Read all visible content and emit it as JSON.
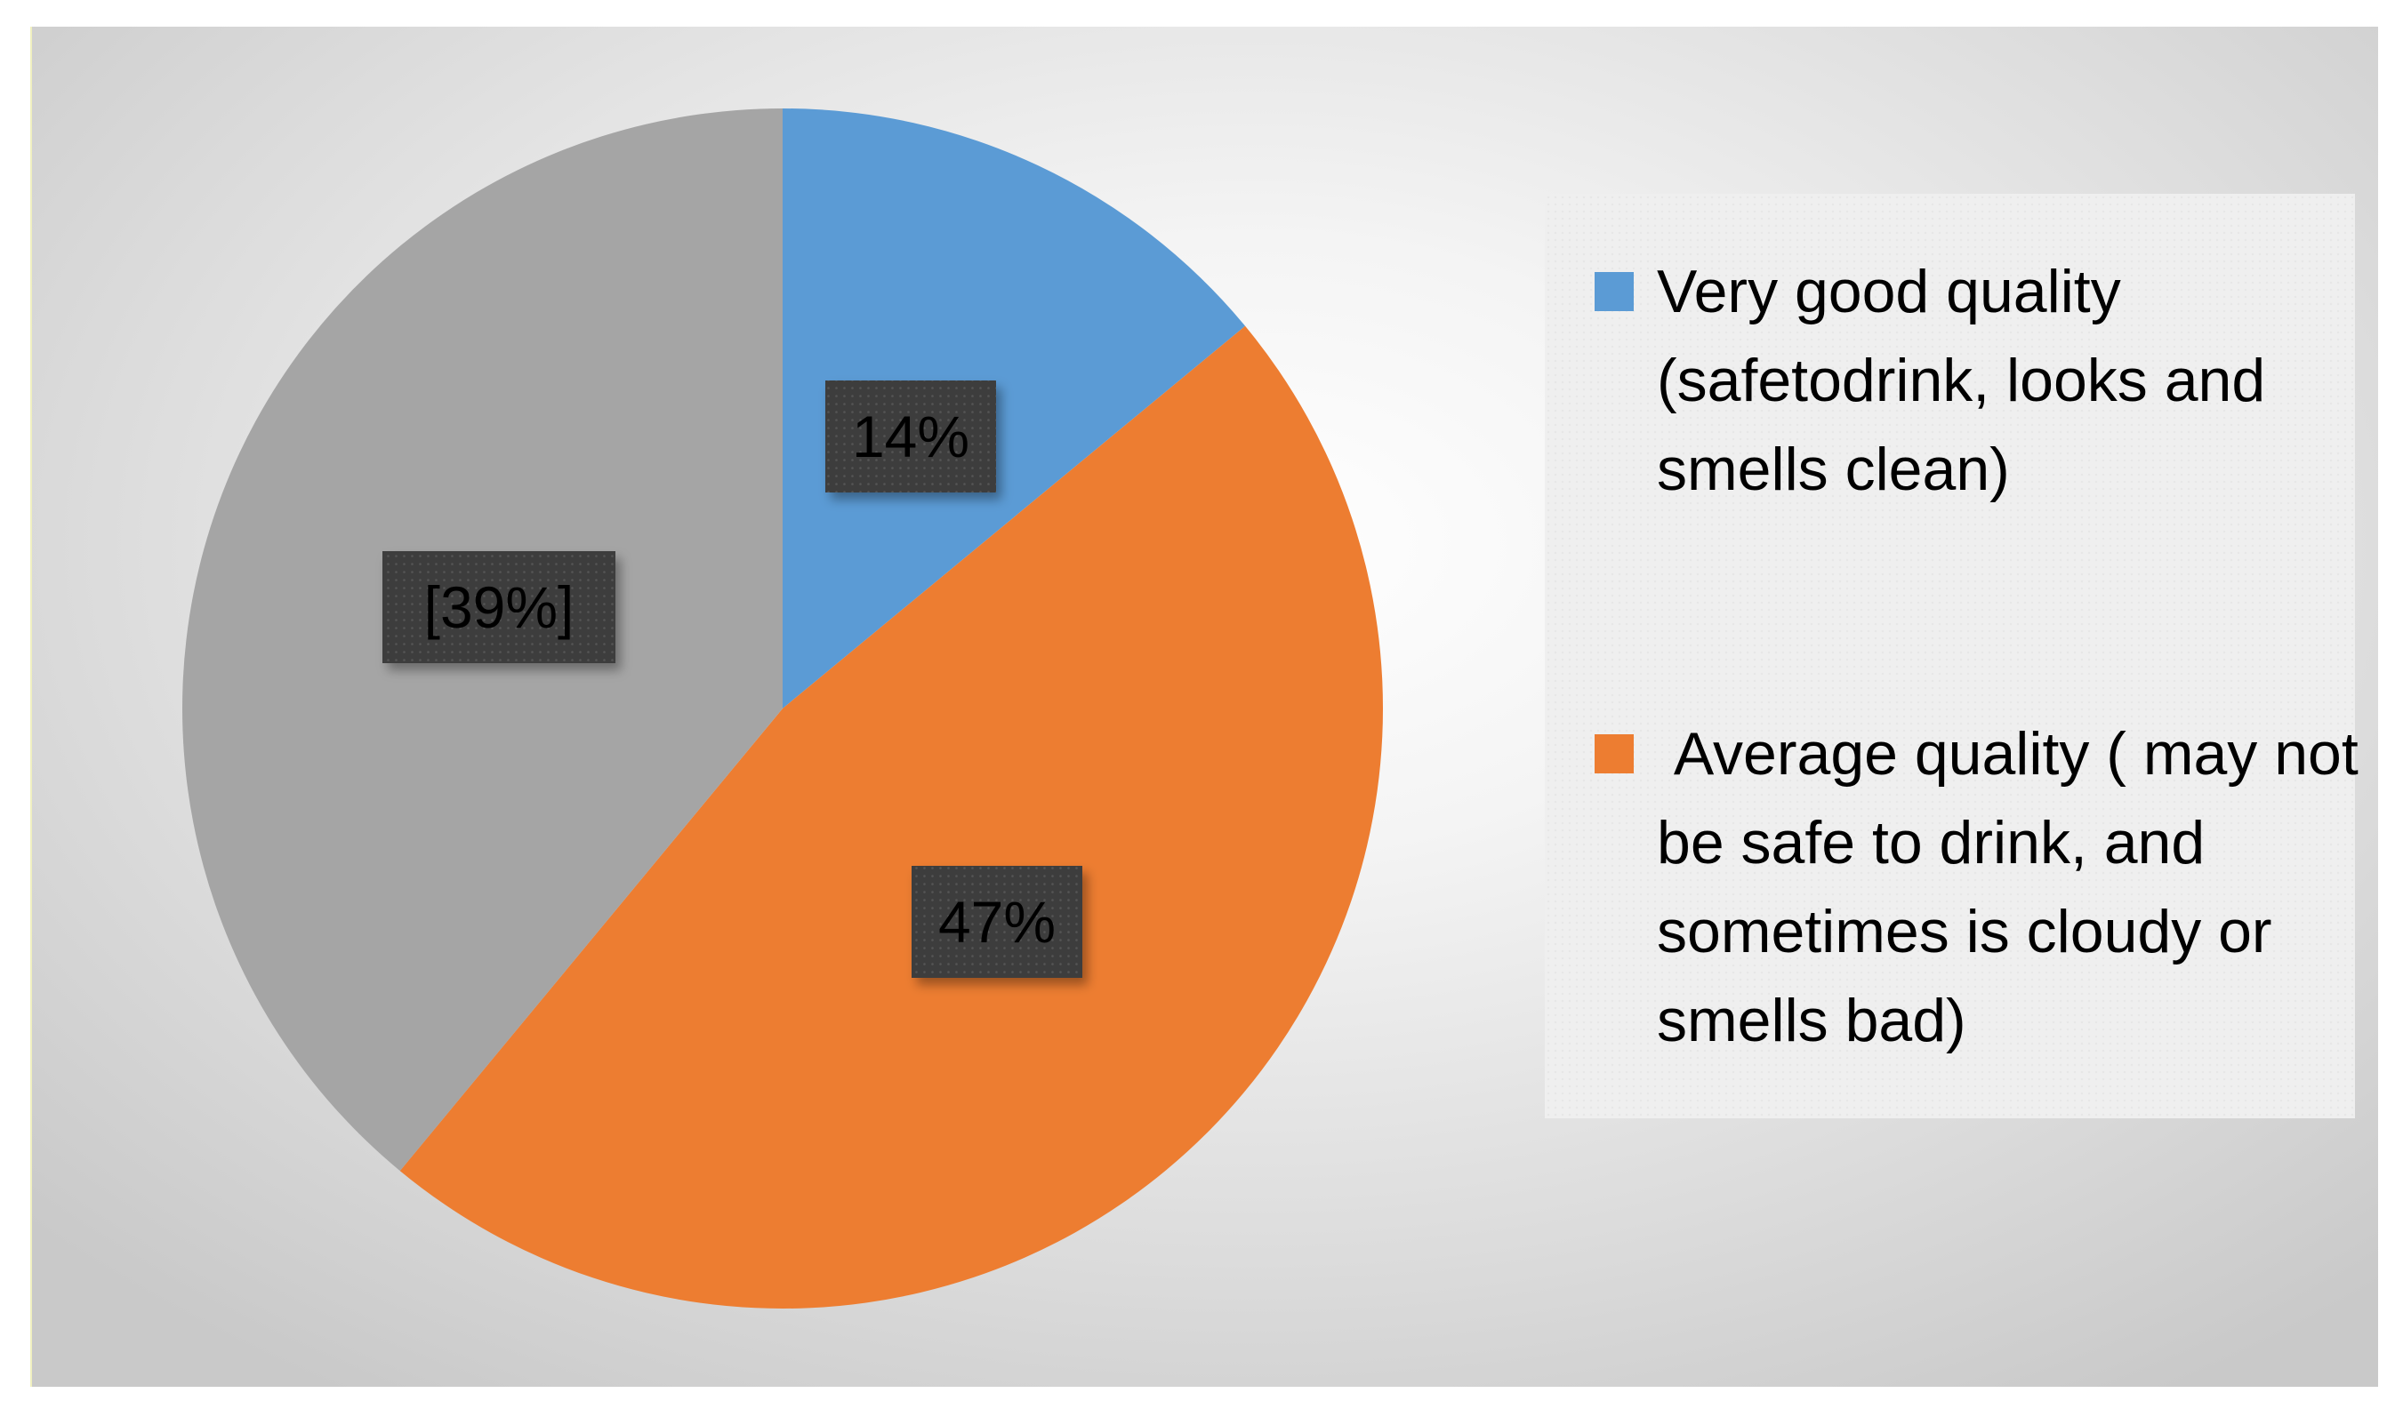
{
  "chart_data": {
    "type": "pie",
    "slices": [
      {
        "label": "Very good quality (safetodrink, looks and smells clean)",
        "value": 14,
        "data_label": "14%",
        "color": "#5b9bd5"
      },
      {
        "label": " Average quality ( may not be safe to drink, and sometimes is cloudy or smells bad)",
        "value": 47,
        "data_label": "47%",
        "color": "#ed7d31"
      },
      {
        "label": "",
        "value": 39,
        "data_label": "[39%]",
        "color": "#a5a5a5"
      }
    ],
    "legend_position": "right",
    "start_angle_deg": 0,
    "direction": "clockwise"
  }
}
